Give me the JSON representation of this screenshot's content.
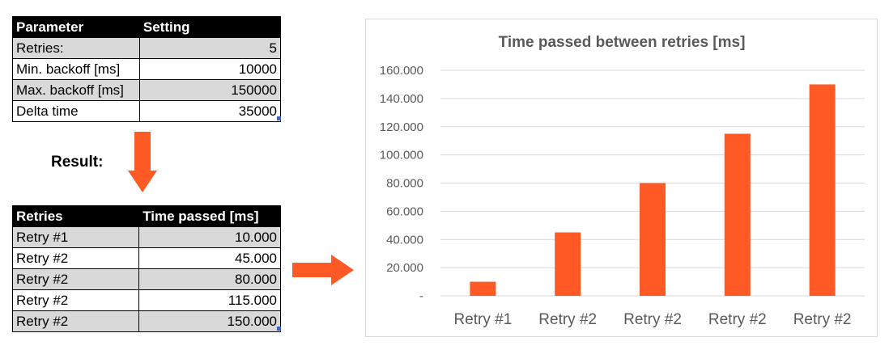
{
  "params_table": {
    "headers": [
      "Parameter",
      "Setting"
    ],
    "rows": [
      {
        "label": "Retries:",
        "value": "5"
      },
      {
        "label": "Min. backoff [ms]",
        "value": "10000"
      },
      {
        "label": "Max. backoff [ms]",
        "value": "150000"
      },
      {
        "label": "Delta time",
        "value": "35000"
      }
    ]
  },
  "result_label": "Result:",
  "results_table": {
    "headers": [
      "Retries",
      "Time passed [ms]"
    ],
    "rows": [
      {
        "label": "Retry #1",
        "value": "10.000"
      },
      {
        "label": "Retry #2",
        "value": "45.000"
      },
      {
        "label": "Retry #2",
        "value": "80.000"
      },
      {
        "label": "Retry #2",
        "value": "115.000"
      },
      {
        "label": "Retry #2",
        "value": "150.000"
      }
    ]
  },
  "colors": {
    "accent": "#FF5A26",
    "header_bg": "#000000",
    "row_shade": "#D9D9D9",
    "axis_text": "#595959"
  },
  "chart_data": {
    "type": "bar",
    "title": "Time passed between retries [ms]",
    "categories": [
      "Retry #1",
      "Retry #2",
      "Retry #2",
      "Retry #2",
      "Retry #2"
    ],
    "values": [
      10000,
      45000,
      80000,
      115000,
      150000
    ],
    "ylim": [
      0,
      160000
    ],
    "yticks": [
      0,
      20000,
      40000,
      60000,
      80000,
      100000,
      120000,
      140000,
      160000
    ],
    "ytick_labels": [
      "-",
      "20.000",
      "40.000",
      "60.000",
      "80.000",
      "100.000",
      "120.000",
      "140.000",
      "160.000"
    ],
    "grid": true,
    "legend": "none",
    "bar_color": "#FF5A26"
  }
}
